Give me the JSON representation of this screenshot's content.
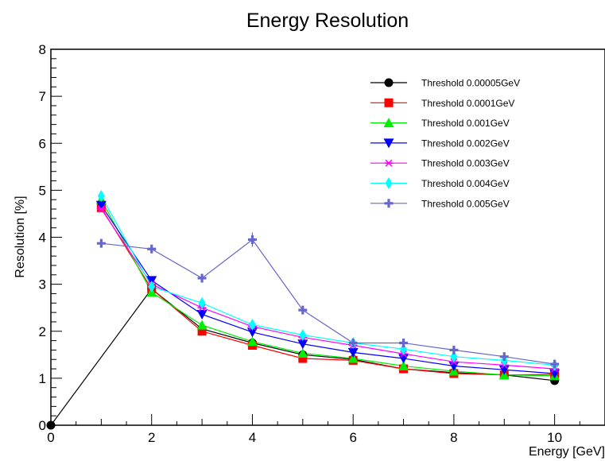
{
  "chart_data": {
    "type": "line",
    "title": "Energy Resolution",
    "xlabel": "Energy [GeV]",
    "ylabel": "Resolution [%]",
    "xlim": [
      0,
      11
    ],
    "ylim": [
      0,
      8
    ],
    "x_ticks": [
      "0",
      "2",
      "4",
      "6",
      "8",
      "10"
    ],
    "y_ticks": [
      "0",
      "1",
      "2",
      "3",
      "4",
      "5",
      "6",
      "7",
      "8"
    ],
    "grid": false,
    "legend_position": "top-right",
    "series": [
      {
        "name": "Threshold 0.00005GeV",
        "color": "#000000",
        "marker": "circle",
        "x": [
          0,
          2,
          3,
          4,
          5,
          6,
          7,
          8,
          9,
          10
        ],
        "y": [
          0,
          2.9,
          2.05,
          1.75,
          1.5,
          1.4,
          1.2,
          1.12,
          1.07,
          0.95
        ]
      },
      {
        "name": "Threshold 0.0001GeV",
        "color": "#ff0000",
        "marker": "square",
        "x": [
          1,
          2,
          3,
          4,
          5,
          6,
          7,
          8,
          9,
          10
        ],
        "y": [
          4.63,
          2.9,
          2.0,
          1.7,
          1.42,
          1.38,
          1.2,
          1.1,
          1.07,
          1.08
        ]
      },
      {
        "name": "Threshold 0.001GeV",
        "color": "#00ee00",
        "marker": "triangle-up",
        "x": [
          1,
          2,
          3,
          4,
          5,
          6,
          7,
          8,
          9,
          10
        ],
        "y": [
          4.8,
          2.83,
          2.13,
          1.78,
          1.53,
          1.42,
          1.26,
          1.15,
          1.07,
          1.05
        ]
      },
      {
        "name": "Threshold 0.002GeV",
        "color": "#0000ff",
        "marker": "triangle-down",
        "x": [
          1,
          2,
          3,
          4,
          5,
          6,
          7,
          8,
          9,
          10
        ],
        "y": [
          4.68,
          3.08,
          2.36,
          1.98,
          1.73,
          1.55,
          1.42,
          1.26,
          1.18,
          1.1
        ]
      },
      {
        "name": "Threshold 0.003GeV",
        "color": "#ff00ff",
        "marker": "star",
        "x": [
          1,
          2,
          3,
          4,
          5,
          6,
          7,
          8,
          9,
          10
        ],
        "y": [
          4.6,
          3.0,
          2.5,
          2.1,
          1.87,
          1.7,
          1.52,
          1.35,
          1.28,
          1.2
        ]
      },
      {
        "name": "Threshold 0.004GeV",
        "color": "#00ffff",
        "marker": "diamond",
        "x": [
          1,
          2,
          3,
          4,
          5,
          6,
          7,
          8,
          9,
          10
        ],
        "y": [
          4.88,
          2.95,
          2.6,
          2.14,
          1.92,
          1.75,
          1.62,
          1.46,
          1.38,
          1.28
        ]
      },
      {
        "name": "Threshold 0.005GeV",
        "color": "#6666cc",
        "marker": "cross",
        "x": [
          1,
          2,
          3,
          4,
          5,
          6,
          7,
          8,
          9,
          10
        ],
        "y": [
          3.87,
          3.75,
          3.13,
          3.95,
          2.45,
          1.75,
          1.75,
          1.6,
          1.46,
          1.3
        ]
      }
    ]
  }
}
